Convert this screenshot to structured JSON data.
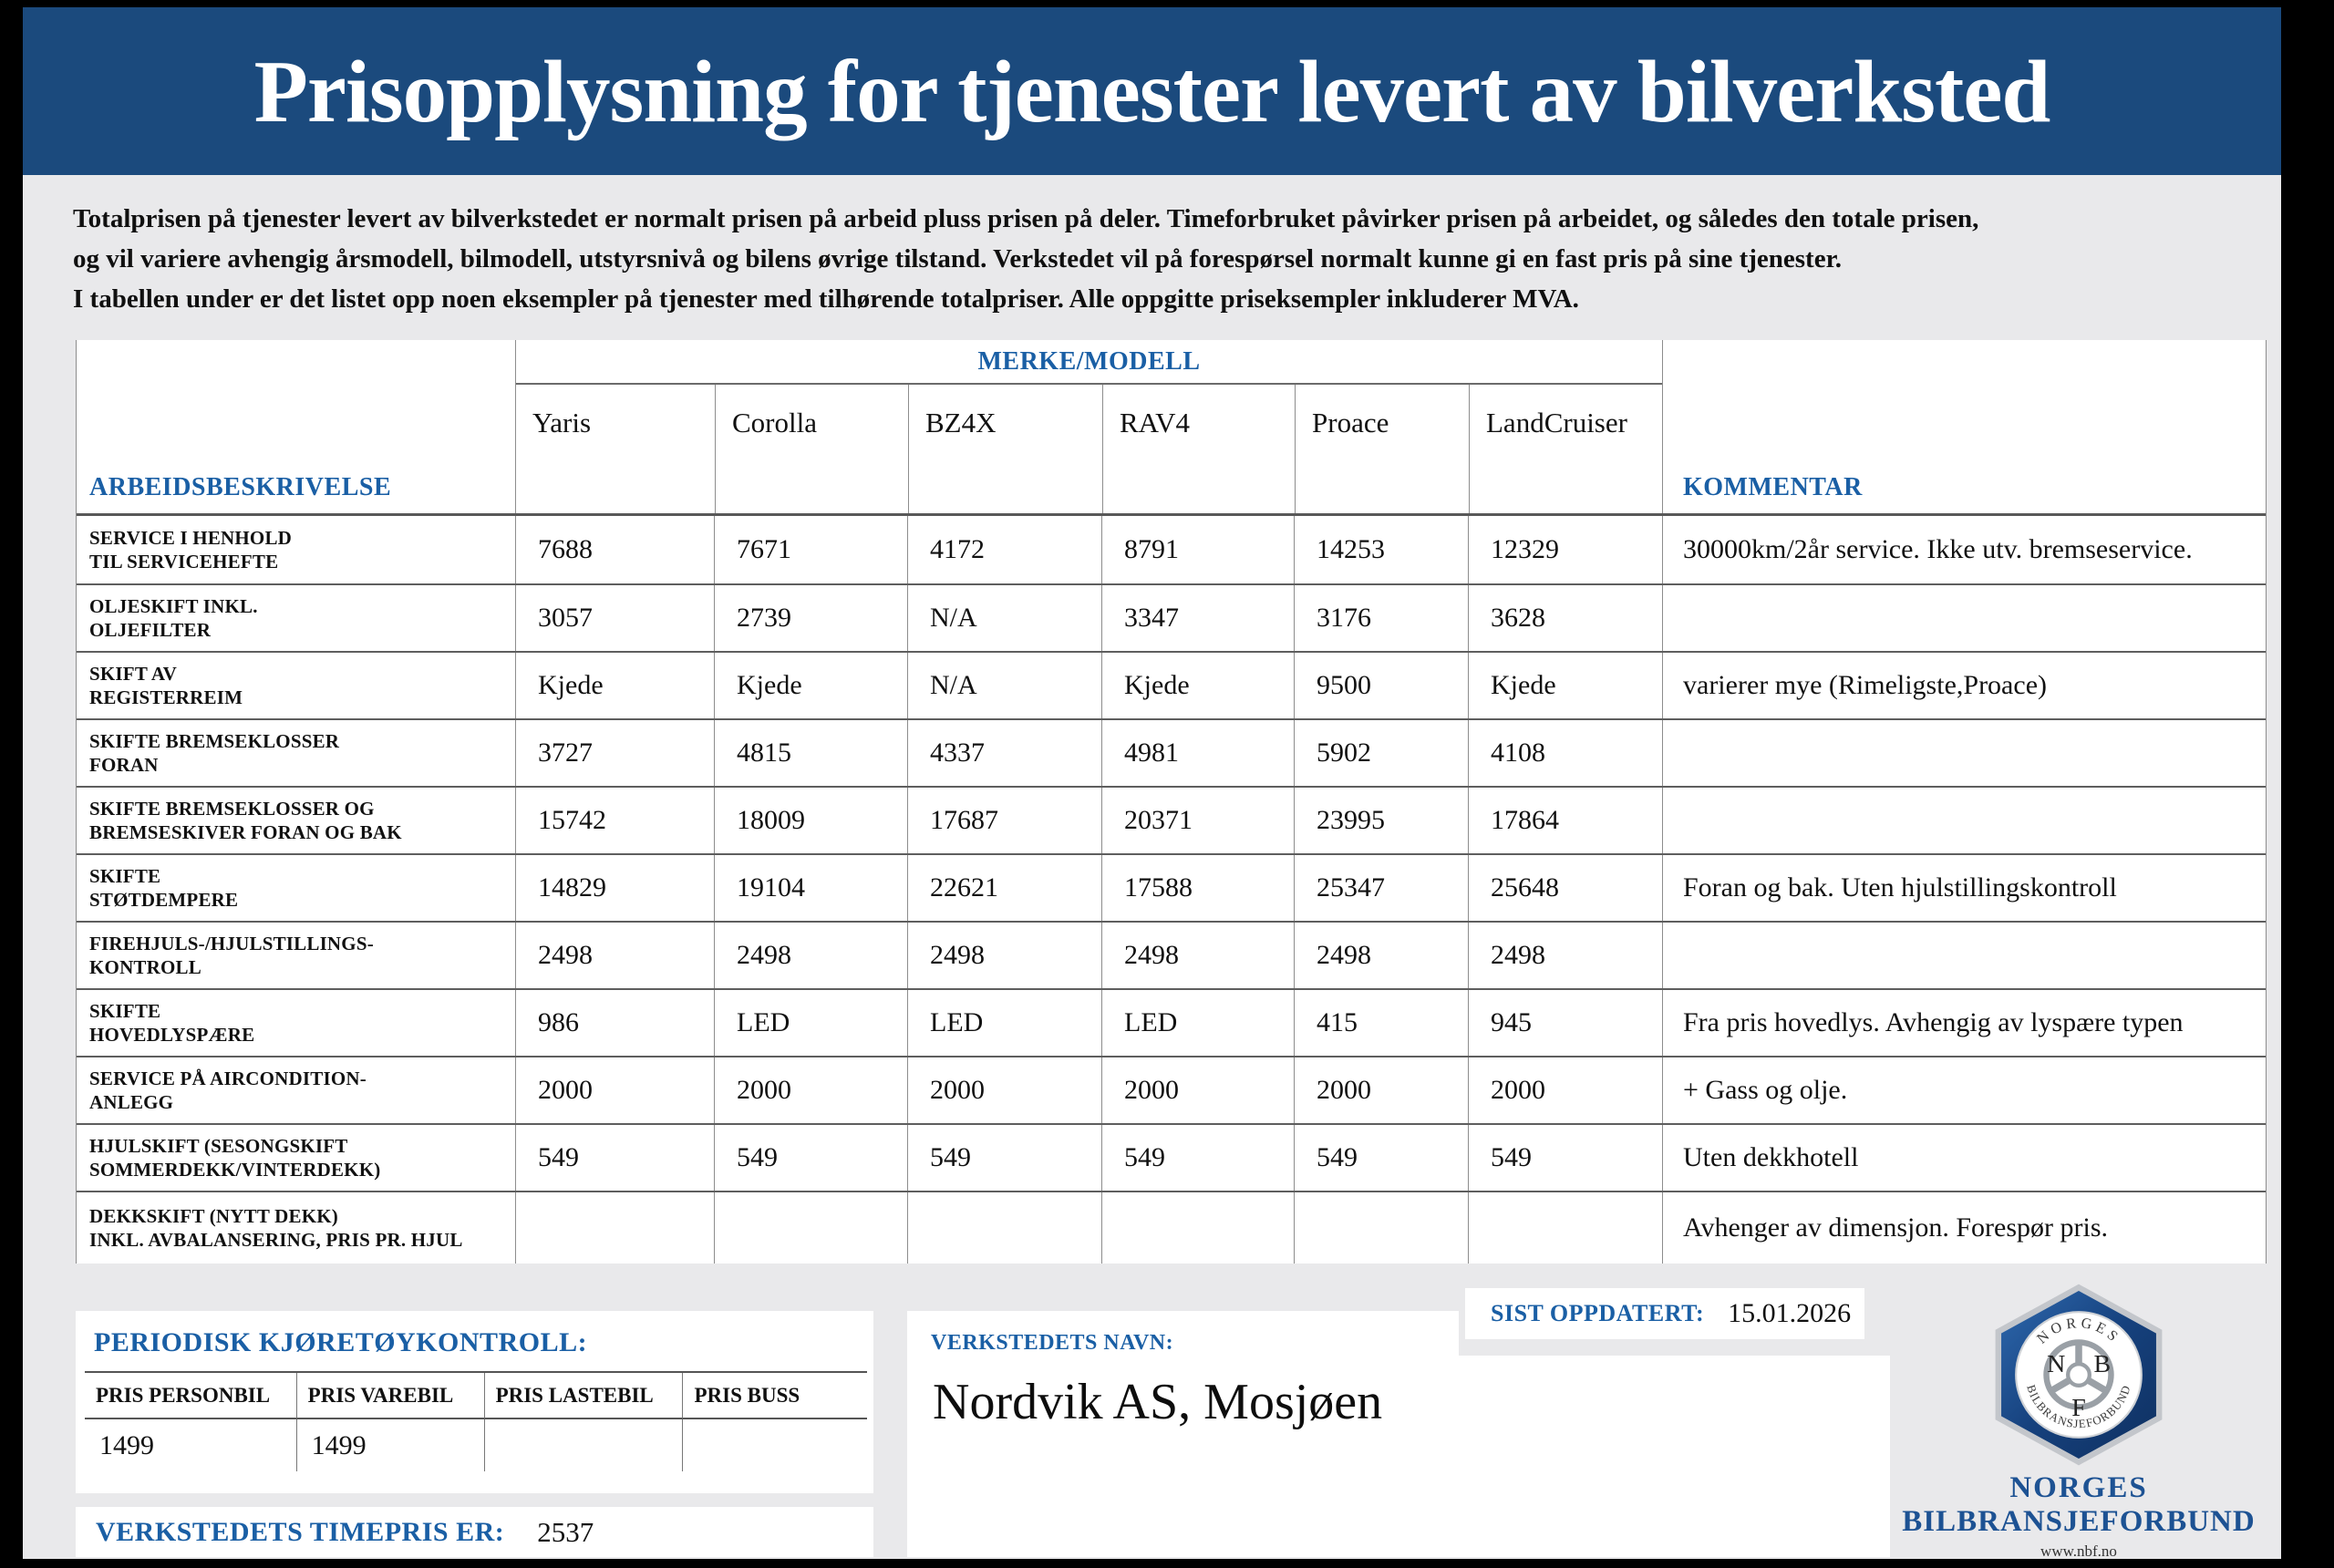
{
  "title": "Prisopplysning for tjenester levert av bilverksted",
  "intro": {
    "line1": "Totalprisen på tjenester levert av bilverkstedet er normalt prisen på arbeid pluss prisen på deler. Timeforbruket påvirker prisen på arbeidet, og således den totale prisen,",
    "line2": "og vil variere avhengig årsmodell, bilmodell, utstyrsnivå og bilens øvrige tilstand. Verkstedet vil på forespørsel normalt kunne gi en fast pris på sine tjenester.",
    "line3": "I tabellen under er det listet opp noen eksempler på tjenester med tilhørende totalpriser. Alle oppgitte priseksempler inkluderer MVA."
  },
  "table": {
    "desc_header": "ARBEIDSBESKRIVELSE",
    "group_header": "MERKE/MODELL",
    "comment_header": "KOMMENTAR",
    "models": [
      "Yaris",
      "Corolla",
      "BZ4X",
      "RAV4",
      "Proace",
      "LandCruiser"
    ],
    "rows": [
      {
        "label": [
          "SERVICE I HENHOLD",
          "TIL SERVICEHEFTE"
        ],
        "values": [
          "7688",
          "7671",
          "4172",
          "8791",
          "14253",
          "12329"
        ],
        "comment": "30000km/2år service. Ikke utv. bremseservice."
      },
      {
        "label": [
          "OLJESKIFT INKL.",
          "OLJEFILTER"
        ],
        "values": [
          "3057",
          "2739",
          "N/A",
          "3347",
          "3176",
          "3628"
        ],
        "comment": ""
      },
      {
        "label": [
          "SKIFT AV",
          "REGISTERREIM"
        ],
        "values": [
          "Kjede",
          "Kjede",
          "N/A",
          "Kjede",
          "9500",
          "Kjede"
        ],
        "comment": "varierer mye (Rimeligste,Proace)"
      },
      {
        "label": [
          "SKIFTE BREMSEKLOSSER",
          "FORAN"
        ],
        "values": [
          "3727",
          "4815",
          "4337",
          "4981",
          "5902",
          "4108"
        ],
        "comment": ""
      },
      {
        "label": [
          "SKIFTE BREMSEKLOSSER OG",
          "BREMSESKIVER FORAN OG BAK"
        ],
        "values": [
          "15742",
          "18009",
          "17687",
          "20371",
          "23995",
          "17864"
        ],
        "comment": ""
      },
      {
        "label": [
          "SKIFTE",
          "STØTDEMPERE"
        ],
        "values": [
          "14829",
          "19104",
          "22621",
          "17588",
          "25347",
          "25648"
        ],
        "comment": "Foran og bak. Uten hjulstillingskontroll"
      },
      {
        "label": [
          "FIREHJULS-/HJULSTILLINGS-",
          "KONTROLL"
        ],
        "values": [
          "2498",
          "2498",
          "2498",
          "2498",
          "2498",
          "2498"
        ],
        "comment": ""
      },
      {
        "label": [
          "SKIFTE",
          "HOVEDLYSPÆRE"
        ],
        "values": [
          "986",
          "LED",
          "LED",
          "LED",
          "415",
          "945"
        ],
        "comment": "Fra pris hovedlys. Avhengig av lyspære typen"
      },
      {
        "label": [
          "SERVICE PÅ AIRCONDITION-",
          "ANLEGG"
        ],
        "values": [
          "2000",
          "2000",
          "2000",
          "2000",
          "2000",
          "2000"
        ],
        "comment": "+ Gass og olje."
      },
      {
        "label": [
          "HJULSKIFT (SESONGSKIFT",
          "SOMMERDEKK/VINTERDEKK)"
        ],
        "values": [
          "549",
          "549",
          "549",
          "549",
          "549",
          "549"
        ],
        "comment": "Uten dekkhotell"
      },
      {
        "label": [
          "DEKKSKIFT (NYTT DEKK)",
          "INKL. AVBALANSERING, PRIS PR. HJUL"
        ],
        "values": [
          "",
          "",
          "",
          "",
          "",
          ""
        ],
        "comment": "Avhenger av dimensjon. Forespør pris."
      }
    ]
  },
  "inspection": {
    "title": "PERIODISK KJØRETØYKONTROLL:",
    "columns": [
      "PRIS PERSONBIL",
      "PRIS VAREBIL",
      "PRIS LASTEBIL",
      "PRIS BUSS"
    ],
    "values": [
      "1499",
      "1499",
      "",
      ""
    ]
  },
  "hourly": {
    "label": "VERKSTEDETS TIMEPRIS ER:",
    "value": "2537"
  },
  "workshop": {
    "label": "VERKSTEDETS NAVN:",
    "name": "Nordvik AS, Mosjøen"
  },
  "updated": {
    "label": "SIST OPPDATERT:",
    "value": "15.01.2026"
  },
  "logo": {
    "emblem_top": "NORGES",
    "emblem_bottom": "BILBRANSJEFORBUND",
    "letters": [
      "N",
      "B",
      "F"
    ],
    "line1": "NORGES",
    "line2": "BILBRANSJEFORBUND",
    "url": "www.nbf.no"
  },
  "colors": {
    "band_blue": "#1b4a7d",
    "label_blue": "#1a5fa5"
  }
}
